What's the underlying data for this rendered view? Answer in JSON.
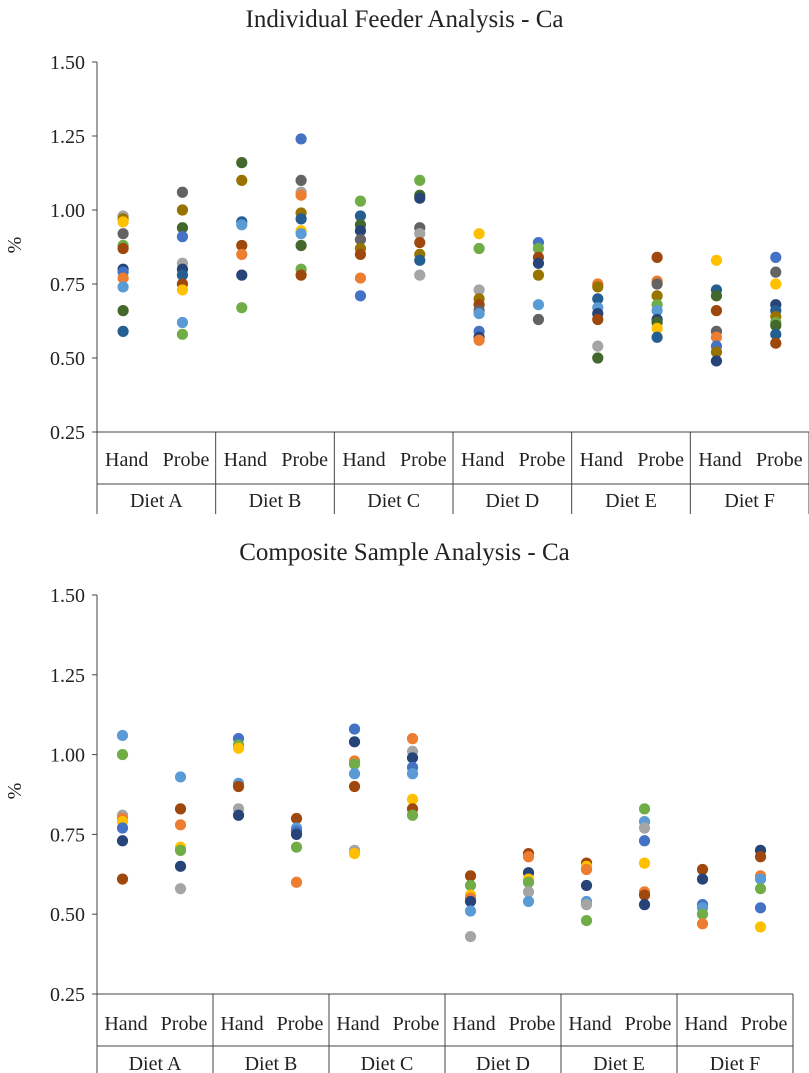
{
  "colors": {
    "palette": [
      "#4472C4",
      "#ED7D31",
      "#A5A5A5",
      "#FFC000",
      "#5B9BD5",
      "#70AD47",
      "#264478",
      "#9E480E",
      "#636363",
      "#997300",
      "#255E91",
      "#43682B"
    ]
  },
  "chart_data": [
    {
      "type": "scatter",
      "title": "Individual Feeder Analysis - Ca",
      "ylabel": "%",
      "ylim": [
        0.25,
        1.5
      ],
      "yticks": [
        "0.25",
        "0.50",
        "0.75",
        "1.00",
        "1.25",
        "1.50"
      ],
      "categories": [
        "Diet A",
        "Diet B",
        "Diet C",
        "Diet D",
        "Diet E",
        "Diet F"
      ],
      "methods": [
        "Hand",
        "Probe"
      ],
      "grid": false,
      "groups": [
        {
          "diet": "Diet A",
          "method": "Hand",
          "points": [
            {
              "v": 0.98,
              "c": 2
            },
            {
              "v": 0.97,
              "c": 9
            },
            {
              "v": 0.96,
              "c": 3
            },
            {
              "v": 0.92,
              "c": 8
            },
            {
              "v": 0.88,
              "c": 5
            },
            {
              "v": 0.87,
              "c": 7
            },
            {
              "v": 0.8,
              "c": 6
            },
            {
              "v": 0.79,
              "c": 0
            },
            {
              "v": 0.77,
              "c": 1
            },
            {
              "v": 0.74,
              "c": 4
            },
            {
              "v": 0.66,
              "c": 11
            },
            {
              "v": 0.59,
              "c": 10
            }
          ]
        },
        {
          "diet": "Diet A",
          "method": "Probe",
          "points": [
            {
              "v": 1.06,
              "c": 8
            },
            {
              "v": 1.0,
              "c": 9
            },
            {
              "v": 0.94,
              "c": 11
            },
            {
              "v": 0.91,
              "c": 0
            },
            {
              "v": 0.82,
              "c": 2
            },
            {
              "v": 0.8,
              "c": 6
            },
            {
              "v": 0.78,
              "c": 10
            },
            {
              "v": 0.75,
              "c": 7
            },
            {
              "v": 0.73,
              "c": 3
            },
            {
              "v": 0.62,
              "c": 4
            },
            {
              "v": 0.58,
              "c": 5
            }
          ]
        },
        {
          "diet": "Diet B",
          "method": "Hand",
          "points": [
            {
              "v": 1.16,
              "c": 11
            },
            {
              "v": 1.1,
              "c": 9
            },
            {
              "v": 0.96,
              "c": 10
            },
            {
              "v": 0.95,
              "c": 4
            },
            {
              "v": 0.88,
              "c": 7
            },
            {
              "v": 0.85,
              "c": 1
            },
            {
              "v": 0.78,
              "c": 6
            },
            {
              "v": 0.67,
              "c": 5
            }
          ]
        },
        {
          "diet": "Diet B",
          "method": "Probe",
          "points": [
            {
              "v": 1.24,
              "c": 0
            },
            {
              "v": 1.1,
              "c": 8
            },
            {
              "v": 1.06,
              "c": 2
            },
            {
              "v": 1.05,
              "c": 1
            },
            {
              "v": 0.99,
              "c": 9
            },
            {
              "v": 0.97,
              "c": 10
            },
            {
              "v": 0.93,
              "c": 3
            },
            {
              "v": 0.92,
              "c": 4
            },
            {
              "v": 0.88,
              "c": 11
            },
            {
              "v": 0.8,
              "c": 5
            },
            {
              "v": 0.78,
              "c": 7
            }
          ]
        },
        {
          "diet": "Diet C",
          "method": "Hand",
          "points": [
            {
              "v": 1.03,
              "c": 5
            },
            {
              "v": 0.98,
              "c": 10
            },
            {
              "v": 0.95,
              "c": 11
            },
            {
              "v": 0.93,
              "c": 6
            },
            {
              "v": 0.9,
              "c": 8
            },
            {
              "v": 0.87,
              "c": 9
            },
            {
              "v": 0.85,
              "c": 7
            },
            {
              "v": 0.77,
              "c": 1
            },
            {
              "v": 0.71,
              "c": 0
            }
          ]
        },
        {
          "diet": "Diet C",
          "method": "Probe",
          "points": [
            {
              "v": 1.1,
              "c": 5
            },
            {
              "v": 1.05,
              "c": 11
            },
            {
              "v": 1.04,
              "c": 6
            },
            {
              "v": 0.94,
              "c": 8
            },
            {
              "v": 0.92,
              "c": 2
            },
            {
              "v": 0.89,
              "c": 7
            },
            {
              "v": 0.85,
              "c": 9
            },
            {
              "v": 0.83,
              "c": 10
            },
            {
              "v": 0.78,
              "c": 2
            }
          ]
        },
        {
          "diet": "Diet D",
          "method": "Hand",
          "points": [
            {
              "v": 0.92,
              "c": 3
            },
            {
              "v": 0.87,
              "c": 5
            },
            {
              "v": 0.73,
              "c": 2
            },
            {
              "v": 0.7,
              "c": 9
            },
            {
              "v": 0.68,
              "c": 7
            },
            {
              "v": 0.66,
              "c": 8
            },
            {
              "v": 0.65,
              "c": 4
            },
            {
              "v": 0.59,
              "c": 0
            },
            {
              "v": 0.57,
              "c": 6
            },
            {
              "v": 0.56,
              "c": 1
            }
          ]
        },
        {
          "diet": "Diet D",
          "method": "Probe",
          "points": [
            {
              "v": 0.89,
              "c": 0
            },
            {
              "v": 0.87,
              "c": 5
            },
            {
              "v": 0.84,
              "c": 7
            },
            {
              "v": 0.82,
              "c": 6
            },
            {
              "v": 0.78,
              "c": 9
            },
            {
              "v": 0.68,
              "c": 4
            },
            {
              "v": 0.63,
              "c": 8
            }
          ]
        },
        {
          "diet": "Diet E",
          "method": "Hand",
          "points": [
            {
              "v": 0.75,
              "c": 1
            },
            {
              "v": 0.74,
              "c": 9
            },
            {
              "v": 0.7,
              "c": 10
            },
            {
              "v": 0.67,
              "c": 4
            },
            {
              "v": 0.65,
              "c": 6
            },
            {
              "v": 0.63,
              "c": 7
            },
            {
              "v": 0.54,
              "c": 2
            },
            {
              "v": 0.5,
              "c": 11
            }
          ]
        },
        {
          "diet": "Diet E",
          "method": "Probe",
          "points": [
            {
              "v": 0.84,
              "c": 7
            },
            {
              "v": 0.76,
              "c": 1
            },
            {
              "v": 0.75,
              "c": 8
            },
            {
              "v": 0.71,
              "c": 9
            },
            {
              "v": 0.68,
              "c": 5
            },
            {
              "v": 0.66,
              "c": 4
            },
            {
              "v": 0.63,
              "c": 6
            },
            {
              "v": 0.62,
              "c": 11
            },
            {
              "v": 0.6,
              "c": 3
            },
            {
              "v": 0.57,
              "c": 10
            }
          ]
        },
        {
          "diet": "Diet F",
          "method": "Hand",
          "points": [
            {
              "v": 0.83,
              "c": 3
            },
            {
              "v": 0.73,
              "c": 10
            },
            {
              "v": 0.71,
              "c": 11
            },
            {
              "v": 0.66,
              "c": 7
            },
            {
              "v": 0.59,
              "c": 8
            },
            {
              "v": 0.57,
              "c": 1
            },
            {
              "v": 0.54,
              "c": 0
            },
            {
              "v": 0.52,
              "c": 9
            },
            {
              "v": 0.49,
              "c": 6
            }
          ]
        },
        {
          "diet": "Diet F",
          "method": "Probe",
          "points": [
            {
              "v": 0.84,
              "c": 0
            },
            {
              "v": 0.79,
              "c": 8
            },
            {
              "v": 0.75,
              "c": 3
            },
            {
              "v": 0.68,
              "c": 6
            },
            {
              "v": 0.66,
              "c": 10
            },
            {
              "v": 0.64,
              "c": 9
            },
            {
              "v": 0.62,
              "c": 5
            },
            {
              "v": 0.61,
              "c": 11
            },
            {
              "v": 0.58,
              "c": 10
            },
            {
              "v": 0.55,
              "c": 7
            }
          ]
        }
      ]
    },
    {
      "type": "scatter",
      "title": "Composite Sample Analysis - Ca",
      "ylabel": "%",
      "ylim": [
        0.25,
        1.5
      ],
      "yticks": [
        "0.25",
        "0.50",
        "0.75",
        "1.00",
        "1.25",
        "1.50"
      ],
      "categories": [
        "Diet A",
        "Diet B",
        "Diet C",
        "Diet D",
        "Diet E",
        "Diet F"
      ],
      "methods": [
        "Hand",
        "Probe"
      ],
      "grid": false,
      "groups": [
        {
          "diet": "Diet A",
          "method": "Hand",
          "points": [
            {
              "v": 1.06,
              "c": 4
            },
            {
              "v": 1.0,
              "c": 5
            },
            {
              "v": 0.81,
              "c": 2
            },
            {
              "v": 0.8,
              "c": 1
            },
            {
              "v": 0.79,
              "c": 3
            },
            {
              "v": 0.77,
              "c": 0
            },
            {
              "v": 0.73,
              "c": 6
            },
            {
              "v": 0.61,
              "c": 7
            }
          ]
        },
        {
          "diet": "Diet A",
          "method": "Probe",
          "points": [
            {
              "v": 0.93,
              "c": 4
            },
            {
              "v": 0.83,
              "c": 7
            },
            {
              "v": 0.78,
              "c": 1
            },
            {
              "v": 0.71,
              "c": 3
            },
            {
              "v": 0.7,
              "c": 5
            },
            {
              "v": 0.65,
              "c": 6
            },
            {
              "v": 0.58,
              "c": 2
            }
          ]
        },
        {
          "diet": "Diet B",
          "method": "Hand",
          "points": [
            {
              "v": 1.05,
              "c": 0
            },
            {
              "v": 1.03,
              "c": 5
            },
            {
              "v": 1.02,
              "c": 3
            },
            {
              "v": 0.91,
              "c": 4
            },
            {
              "v": 0.9,
              "c": 7
            },
            {
              "v": 0.83,
              "c": 2
            },
            {
              "v": 0.81,
              "c": 6
            }
          ]
        },
        {
          "diet": "Diet B",
          "method": "Probe",
          "points": [
            {
              "v": 0.8,
              "c": 7
            },
            {
              "v": 0.77,
              "c": 4
            },
            {
              "v": 0.76,
              "c": 0
            },
            {
              "v": 0.75,
              "c": 6
            },
            {
              "v": 0.71,
              "c": 5
            },
            {
              "v": 0.6,
              "c": 1
            }
          ]
        },
        {
          "diet": "Diet C",
          "method": "Hand",
          "points": [
            {
              "v": 1.08,
              "c": 0
            },
            {
              "v": 1.04,
              "c": 6
            },
            {
              "v": 0.98,
              "c": 1
            },
            {
              "v": 0.97,
              "c": 5
            },
            {
              "v": 0.94,
              "c": 4
            },
            {
              "v": 0.9,
              "c": 7
            },
            {
              "v": 0.7,
              "c": 2
            },
            {
              "v": 0.69,
              "c": 3
            }
          ]
        },
        {
          "diet": "Diet C",
          "method": "Probe",
          "points": [
            {
              "v": 1.05,
              "c": 1
            },
            {
              "v": 1.01,
              "c": 2
            },
            {
              "v": 0.99,
              "c": 6
            },
            {
              "v": 0.96,
              "c": 0
            },
            {
              "v": 0.94,
              "c": 4
            },
            {
              "v": 0.86,
              "c": 3
            },
            {
              "v": 0.83,
              "c": 7
            },
            {
              "v": 0.81,
              "c": 5
            }
          ]
        },
        {
          "diet": "Diet D",
          "method": "Hand",
          "points": [
            {
              "v": 0.62,
              "c": 7
            },
            {
              "v": 0.59,
              "c": 5
            },
            {
              "v": 0.56,
              "c": 3
            },
            {
              "v": 0.55,
              "c": 1
            },
            {
              "v": 0.54,
              "c": 6
            },
            {
              "v": 0.51,
              "c": 4
            },
            {
              "v": 0.43,
              "c": 2
            }
          ]
        },
        {
          "diet": "Diet D",
          "method": "Probe",
          "points": [
            {
              "v": 0.69,
              "c": 7
            },
            {
              "v": 0.68,
              "c": 1
            },
            {
              "v": 0.63,
              "c": 6
            },
            {
              "v": 0.61,
              "c": 3
            },
            {
              "v": 0.6,
              "c": 5
            },
            {
              "v": 0.57,
              "c": 2
            },
            {
              "v": 0.54,
              "c": 4
            }
          ]
        },
        {
          "diet": "Diet E",
          "method": "Hand",
          "points": [
            {
              "v": 0.66,
              "c": 7
            },
            {
              "v": 0.65,
              "c": 3
            },
            {
              "v": 0.64,
              "c": 1
            },
            {
              "v": 0.59,
              "c": 6
            },
            {
              "v": 0.54,
              "c": 4
            },
            {
              "v": 0.53,
              "c": 2
            },
            {
              "v": 0.48,
              "c": 5
            }
          ]
        },
        {
          "diet": "Diet E",
          "method": "Probe",
          "points": [
            {
              "v": 0.83,
              "c": 5
            },
            {
              "v": 0.79,
              "c": 4
            },
            {
              "v": 0.77,
              "c": 2
            },
            {
              "v": 0.73,
              "c": 0
            },
            {
              "v": 0.66,
              "c": 3
            },
            {
              "v": 0.57,
              "c": 1
            },
            {
              "v": 0.56,
              "c": 7
            },
            {
              "v": 0.53,
              "c": 6
            }
          ]
        },
        {
          "diet": "Diet F",
          "method": "Hand",
          "points": [
            {
              "v": 0.64,
              "c": 7
            },
            {
              "v": 0.61,
              "c": 6
            },
            {
              "v": 0.53,
              "c": 0
            },
            {
              "v": 0.52,
              "c": 4
            },
            {
              "v": 0.5,
              "c": 5
            },
            {
              "v": 0.47,
              "c": 1
            }
          ]
        },
        {
          "diet": "Diet F",
          "method": "Probe",
          "points": [
            {
              "v": 0.7,
              "c": 6
            },
            {
              "v": 0.68,
              "c": 7
            },
            {
              "v": 0.62,
              "c": 1
            },
            {
              "v": 0.61,
              "c": 4
            },
            {
              "v": 0.58,
              "c": 5
            },
            {
              "v": 0.52,
              "c": 0
            },
            {
              "v": 0.46,
              "c": 3
            }
          ]
        }
      ]
    }
  ]
}
